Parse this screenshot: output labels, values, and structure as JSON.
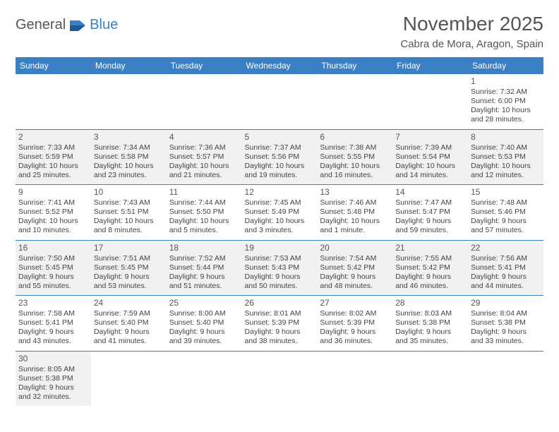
{
  "brand": {
    "general": "General",
    "blue": "Blue"
  },
  "header": {
    "month_title": "November 2025",
    "location": "Cabra de Mora, Aragon, Spain"
  },
  "colors": {
    "header_bg": "#3b7fc4",
    "header_text": "#ffffff",
    "border": "#3b7fc4",
    "shaded_row": "#f1f1f1",
    "body_text": "#444444",
    "title_text": "#555555"
  },
  "dayHeaders": [
    "Sunday",
    "Monday",
    "Tuesday",
    "Wednesday",
    "Thursday",
    "Friday",
    "Saturday"
  ],
  "weeks": [
    {
      "shaded": false,
      "cells": [
        {
          "empty": true
        },
        {
          "empty": true
        },
        {
          "empty": true
        },
        {
          "empty": true
        },
        {
          "empty": true
        },
        {
          "empty": true
        },
        {
          "day": "1",
          "sunrise": "Sunrise: 7:32 AM",
          "sunset": "Sunset: 6:00 PM",
          "dl1": "Daylight: 10 hours",
          "dl2": "and 28 minutes."
        }
      ]
    },
    {
      "shaded": true,
      "cells": [
        {
          "day": "2",
          "sunrise": "Sunrise: 7:33 AM",
          "sunset": "Sunset: 5:59 PM",
          "dl1": "Daylight: 10 hours",
          "dl2": "and 25 minutes."
        },
        {
          "day": "3",
          "sunrise": "Sunrise: 7:34 AM",
          "sunset": "Sunset: 5:58 PM",
          "dl1": "Daylight: 10 hours",
          "dl2": "and 23 minutes."
        },
        {
          "day": "4",
          "sunrise": "Sunrise: 7:36 AM",
          "sunset": "Sunset: 5:57 PM",
          "dl1": "Daylight: 10 hours",
          "dl2": "and 21 minutes."
        },
        {
          "day": "5",
          "sunrise": "Sunrise: 7:37 AM",
          "sunset": "Sunset: 5:56 PM",
          "dl1": "Daylight: 10 hours",
          "dl2": "and 19 minutes."
        },
        {
          "day": "6",
          "sunrise": "Sunrise: 7:38 AM",
          "sunset": "Sunset: 5:55 PM",
          "dl1": "Daylight: 10 hours",
          "dl2": "and 16 minutes."
        },
        {
          "day": "7",
          "sunrise": "Sunrise: 7:39 AM",
          "sunset": "Sunset: 5:54 PM",
          "dl1": "Daylight: 10 hours",
          "dl2": "and 14 minutes."
        },
        {
          "day": "8",
          "sunrise": "Sunrise: 7:40 AM",
          "sunset": "Sunset: 5:53 PM",
          "dl1": "Daylight: 10 hours",
          "dl2": "and 12 minutes."
        }
      ]
    },
    {
      "shaded": false,
      "cells": [
        {
          "day": "9",
          "sunrise": "Sunrise: 7:41 AM",
          "sunset": "Sunset: 5:52 PM",
          "dl1": "Daylight: 10 hours",
          "dl2": "and 10 minutes."
        },
        {
          "day": "10",
          "sunrise": "Sunrise: 7:43 AM",
          "sunset": "Sunset: 5:51 PM",
          "dl1": "Daylight: 10 hours",
          "dl2": "and 8 minutes."
        },
        {
          "day": "11",
          "sunrise": "Sunrise: 7:44 AM",
          "sunset": "Sunset: 5:50 PM",
          "dl1": "Daylight: 10 hours",
          "dl2": "and 5 minutes."
        },
        {
          "day": "12",
          "sunrise": "Sunrise: 7:45 AM",
          "sunset": "Sunset: 5:49 PM",
          "dl1": "Daylight: 10 hours",
          "dl2": "and 3 minutes."
        },
        {
          "day": "13",
          "sunrise": "Sunrise: 7:46 AM",
          "sunset": "Sunset: 5:48 PM",
          "dl1": "Daylight: 10 hours",
          "dl2": "and 1 minute."
        },
        {
          "day": "14",
          "sunrise": "Sunrise: 7:47 AM",
          "sunset": "Sunset: 5:47 PM",
          "dl1": "Daylight: 9 hours",
          "dl2": "and 59 minutes."
        },
        {
          "day": "15",
          "sunrise": "Sunrise: 7:48 AM",
          "sunset": "Sunset: 5:46 PM",
          "dl1": "Daylight: 9 hours",
          "dl2": "and 57 minutes."
        }
      ]
    },
    {
      "shaded": true,
      "cells": [
        {
          "day": "16",
          "sunrise": "Sunrise: 7:50 AM",
          "sunset": "Sunset: 5:45 PM",
          "dl1": "Daylight: 9 hours",
          "dl2": "and 55 minutes."
        },
        {
          "day": "17",
          "sunrise": "Sunrise: 7:51 AM",
          "sunset": "Sunset: 5:45 PM",
          "dl1": "Daylight: 9 hours",
          "dl2": "and 53 minutes."
        },
        {
          "day": "18",
          "sunrise": "Sunrise: 7:52 AM",
          "sunset": "Sunset: 5:44 PM",
          "dl1": "Daylight: 9 hours",
          "dl2": "and 51 minutes."
        },
        {
          "day": "19",
          "sunrise": "Sunrise: 7:53 AM",
          "sunset": "Sunset: 5:43 PM",
          "dl1": "Daylight: 9 hours",
          "dl2": "and 50 minutes."
        },
        {
          "day": "20",
          "sunrise": "Sunrise: 7:54 AM",
          "sunset": "Sunset: 5:42 PM",
          "dl1": "Daylight: 9 hours",
          "dl2": "and 48 minutes."
        },
        {
          "day": "21",
          "sunrise": "Sunrise: 7:55 AM",
          "sunset": "Sunset: 5:42 PM",
          "dl1": "Daylight: 9 hours",
          "dl2": "and 46 minutes."
        },
        {
          "day": "22",
          "sunrise": "Sunrise: 7:56 AM",
          "sunset": "Sunset: 5:41 PM",
          "dl1": "Daylight: 9 hours",
          "dl2": "and 44 minutes."
        }
      ]
    },
    {
      "shaded": false,
      "cells": [
        {
          "day": "23",
          "sunrise": "Sunrise: 7:58 AM",
          "sunset": "Sunset: 5:41 PM",
          "dl1": "Daylight: 9 hours",
          "dl2": "and 43 minutes."
        },
        {
          "day": "24",
          "sunrise": "Sunrise: 7:59 AM",
          "sunset": "Sunset: 5:40 PM",
          "dl1": "Daylight: 9 hours",
          "dl2": "and 41 minutes."
        },
        {
          "day": "25",
          "sunrise": "Sunrise: 8:00 AM",
          "sunset": "Sunset: 5:40 PM",
          "dl1": "Daylight: 9 hours",
          "dl2": "and 39 minutes."
        },
        {
          "day": "26",
          "sunrise": "Sunrise: 8:01 AM",
          "sunset": "Sunset: 5:39 PM",
          "dl1": "Daylight: 9 hours",
          "dl2": "and 38 minutes."
        },
        {
          "day": "27",
          "sunrise": "Sunrise: 8:02 AM",
          "sunset": "Sunset: 5:39 PM",
          "dl1": "Daylight: 9 hours",
          "dl2": "and 36 minutes."
        },
        {
          "day": "28",
          "sunrise": "Sunrise: 8:03 AM",
          "sunset": "Sunset: 5:38 PM",
          "dl1": "Daylight: 9 hours",
          "dl2": "and 35 minutes."
        },
        {
          "day": "29",
          "sunrise": "Sunrise: 8:04 AM",
          "sunset": "Sunset: 5:38 PM",
          "dl1": "Daylight: 9 hours",
          "dl2": "and 33 minutes."
        }
      ]
    },
    {
      "shaded": true,
      "last": true,
      "cells": [
        {
          "day": "30",
          "sunrise": "Sunrise: 8:05 AM",
          "sunset": "Sunset: 5:38 PM",
          "dl1": "Daylight: 9 hours",
          "dl2": "and 32 minutes."
        },
        {
          "empty": true
        },
        {
          "empty": true
        },
        {
          "empty": true
        },
        {
          "empty": true
        },
        {
          "empty": true
        },
        {
          "empty": true
        }
      ]
    }
  ]
}
